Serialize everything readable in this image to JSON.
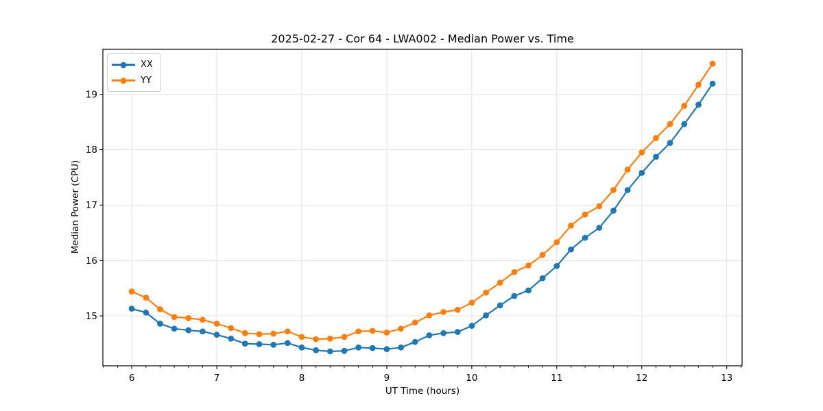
{
  "chart_data": {
    "type": "line",
    "title": "2025-02-27 - Cor 64 - LWA002 - Median Power vs. Time",
    "xlabel": "UT Time (hours)",
    "ylabel": "Median Power (CPU)",
    "xlim": [
      5.66,
      13.18
    ],
    "ylim": [
      14.1,
      19.81
    ],
    "x_ticks": [
      6,
      7,
      8,
      9,
      10,
      11,
      12,
      13
    ],
    "y_ticks": [
      15,
      16,
      17,
      18,
      19
    ],
    "x_minor_step_hours": 0.16667,
    "grid": true,
    "grid_color": "#e2e2e2",
    "spine_color": "#000000",
    "legend_position": "upper-left",
    "legend_border_color": "#cccccc",
    "x": [
      6.0,
      6.167,
      6.333,
      6.5,
      6.667,
      6.833,
      7.0,
      7.167,
      7.333,
      7.5,
      7.667,
      7.833,
      8.0,
      8.167,
      8.333,
      8.5,
      8.667,
      8.833,
      9.0,
      9.167,
      9.333,
      9.5,
      9.667,
      9.833,
      10.0,
      10.167,
      10.333,
      10.5,
      10.667,
      10.833,
      11.0,
      11.167,
      11.333,
      11.5,
      11.667,
      11.833,
      12.0,
      12.167,
      12.333,
      12.5,
      12.667,
      12.833
    ],
    "series": [
      {
        "name": "XX",
        "color": "#1f77b4",
        "marker": "circle",
        "values": [
          15.13,
          15.06,
          14.86,
          14.77,
          14.74,
          14.72,
          14.66,
          14.59,
          14.5,
          14.49,
          14.48,
          14.51,
          14.43,
          14.38,
          14.36,
          14.37,
          14.43,
          14.42,
          14.4,
          14.43,
          14.53,
          14.65,
          14.69,
          14.71,
          14.82,
          15.01,
          15.19,
          15.36,
          15.46,
          15.68,
          15.9,
          16.2,
          16.41,
          16.59,
          16.9,
          17.27,
          17.58,
          17.87,
          18.12,
          18.46,
          18.81,
          19.19
        ]
      },
      {
        "name": "YY",
        "color": "#ff7f0e",
        "marker": "circle",
        "values": [
          15.44,
          15.33,
          15.12,
          14.98,
          14.96,
          14.93,
          14.86,
          14.78,
          14.69,
          14.67,
          14.68,
          14.72,
          14.62,
          14.58,
          14.59,
          14.62,
          14.72,
          14.73,
          14.7,
          14.77,
          14.88,
          15.01,
          15.07,
          15.11,
          15.24,
          15.42,
          15.6,
          15.79,
          15.91,
          16.1,
          16.33,
          16.63,
          16.83,
          16.98,
          17.27,
          17.64,
          17.95,
          18.21,
          18.46,
          18.79,
          19.17,
          19.55
        ]
      }
    ]
  }
}
